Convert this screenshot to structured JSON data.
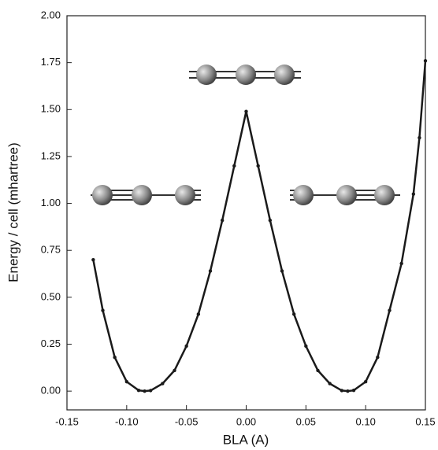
{
  "chart_data": {
    "type": "line",
    "xlabel": "BLA (A)",
    "ylabel": "Energy / cell (mhartree)",
    "x": [
      -0.128,
      -0.12,
      -0.11,
      -0.1,
      -0.09,
      -0.085,
      -0.08,
      -0.07,
      -0.06,
      -0.05,
      -0.04,
      -0.03,
      -0.02,
      -0.01,
      0,
      0.01,
      0.02,
      0.03,
      0.04,
      0.05,
      0.06,
      0.07,
      0.08,
      0.085,
      0.09,
      0.1,
      0.11,
      0.12,
      0.13,
      0.14,
      0.145,
      0.15
    ],
    "series": [
      {
        "color": "#1a1a1a",
        "values": [
          0.7,
          0.43,
          0.18,
          0.05,
          0.004,
          0,
          0.003,
          0.04,
          0.11,
          0.24,
          0.41,
          0.64,
          0.91,
          1.2,
          1.49,
          1.2,
          0.91,
          0.64,
          0.41,
          0.24,
          0.11,
          0.04,
          0.003,
          0,
          0.004,
          0.05,
          0.18,
          0.43,
          0.68,
          1.05,
          1.35,
          1.76
        ]
      }
    ],
    "xlim": [
      -0.15,
      0.15
    ],
    "xticks": [
      -0.15,
      {
        "value": -0.1,
        "label": "-0.10"
      },
      -0.05,
      {
        "value": 0,
        "label": "0.00"
      },
      0.05,
      {
        "value": 0.1,
        "label": "0.10"
      },
      0.15
    ],
    "ylim": [
      -0.1,
      2.0
    ],
    "yticks": [
      {
        "value": 0,
        "label": "0.00"
      },
      0.25,
      {
        "value": 0.5,
        "label": "0.50"
      },
      0.75,
      {
        "value": 1,
        "label": "1.00"
      },
      1.25,
      {
        "value": 1.5,
        "label": "1.50"
      },
      1.75,
      {
        "value": 2,
        "label": "2.00"
      }
    ]
  }
}
